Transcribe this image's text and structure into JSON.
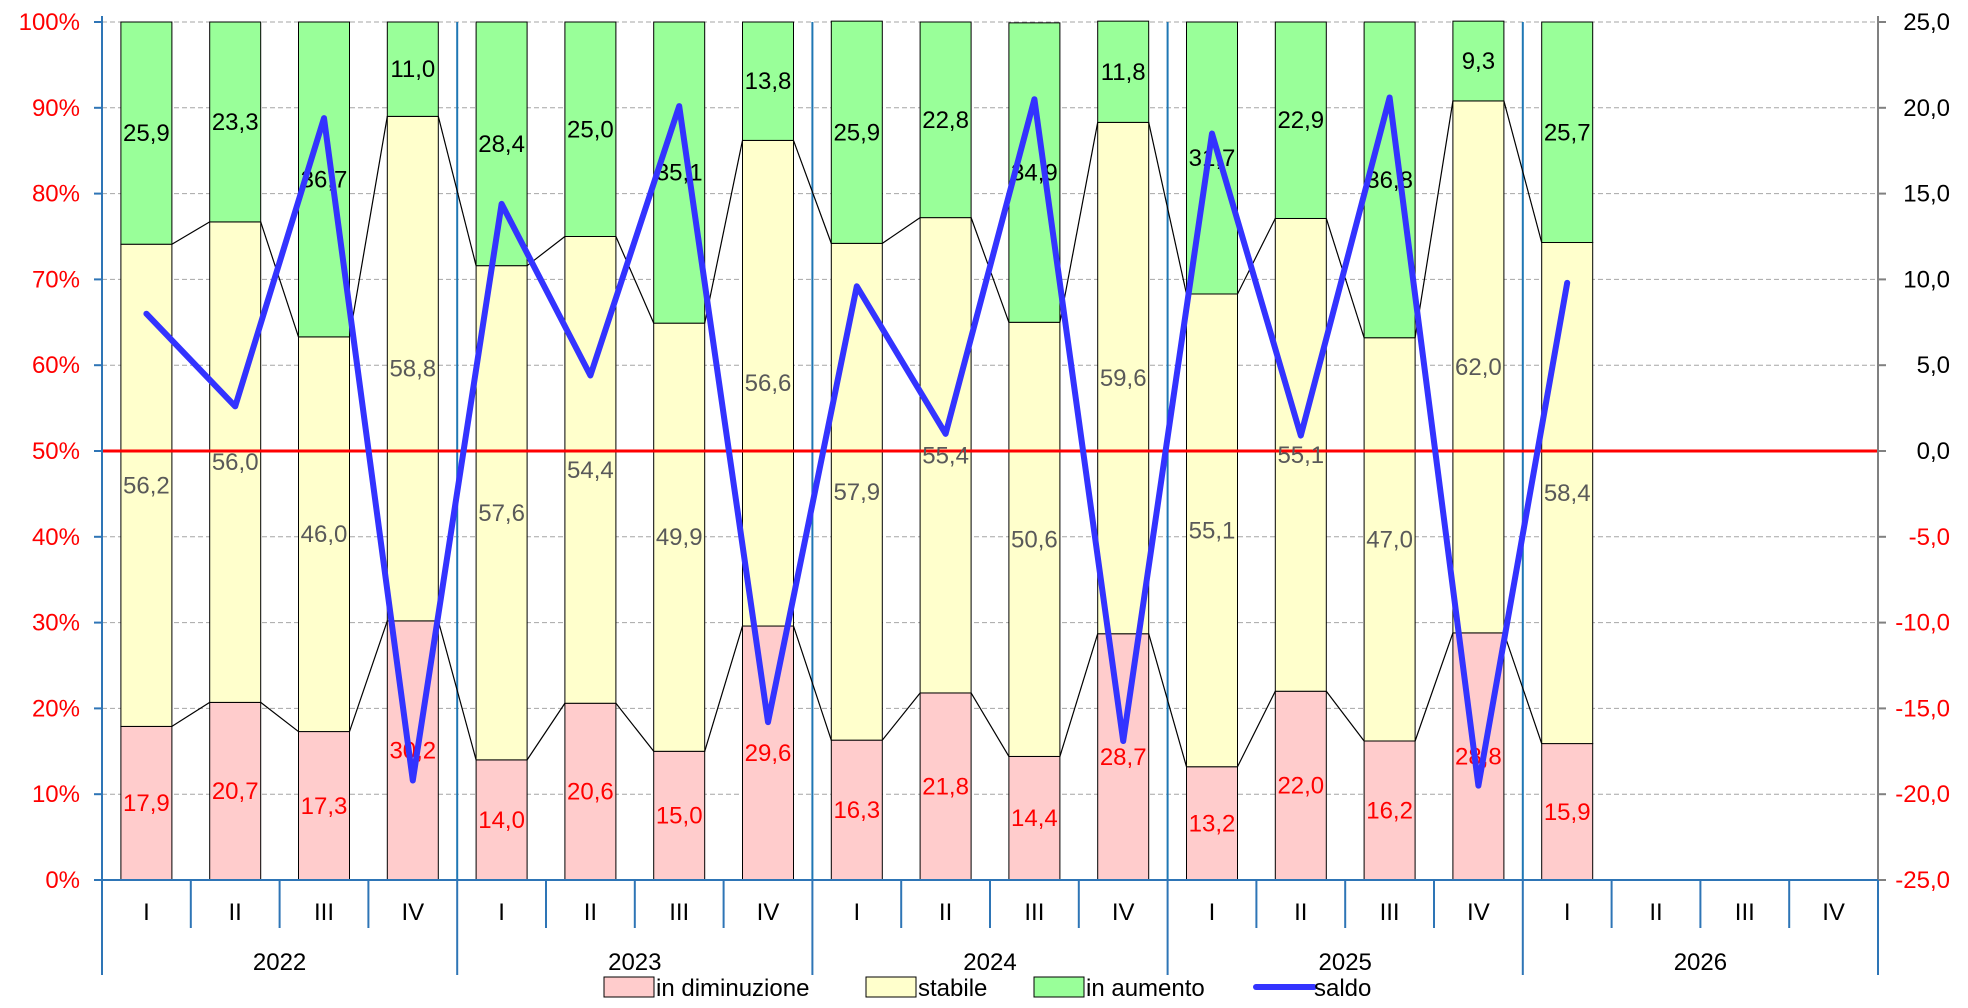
{
  "chart_data": {
    "type": "bar",
    "stacked": true,
    "years": [
      "2022",
      "2023",
      "2024",
      "2025",
      "2026"
    ],
    "quarters": [
      "I",
      "II",
      "III",
      "IV"
    ],
    "x": [
      {
        "year": "2022",
        "quarter": "I"
      },
      {
        "year": "2022",
        "quarter": "II"
      },
      {
        "year": "2022",
        "quarter": "III"
      },
      {
        "year": "2022",
        "quarter": "IV"
      },
      {
        "year": "2023",
        "quarter": "I"
      },
      {
        "year": "2023",
        "quarter": "II"
      },
      {
        "year": "2023",
        "quarter": "III"
      },
      {
        "year": "2023",
        "quarter": "IV"
      },
      {
        "year": "2024",
        "quarter": "I"
      },
      {
        "year": "2024",
        "quarter": "II"
      },
      {
        "year": "2024",
        "quarter": "III"
      },
      {
        "year": "2024",
        "quarter": "IV"
      },
      {
        "year": "2025",
        "quarter": "I"
      },
      {
        "year": "2025",
        "quarter": "II"
      },
      {
        "year": "2025",
        "quarter": "III"
      },
      {
        "year": "2025",
        "quarter": "IV"
      },
      {
        "year": "2026",
        "quarter": "I"
      },
      {
        "year": "2026",
        "quarter": "II"
      },
      {
        "year": "2026",
        "quarter": "III"
      },
      {
        "year": "2026",
        "quarter": "IV"
      }
    ],
    "series": [
      {
        "name": "in diminuzione",
        "color": "#ffcccc",
        "label_color": "#ff0000",
        "values": [
          17.9,
          20.7,
          17.3,
          30.2,
          14.0,
          20.6,
          15.0,
          29.6,
          16.3,
          21.8,
          14.4,
          28.7,
          13.2,
          22.0,
          16.2,
          28.8,
          15.9,
          null,
          null,
          null
        ]
      },
      {
        "name": "stabile",
        "color": "#ffffcc",
        "label_color": "#595959",
        "values": [
          56.2,
          56.0,
          46.0,
          58.8,
          57.6,
          54.4,
          49.9,
          56.6,
          57.9,
          55.4,
          50.6,
          59.6,
          55.1,
          55.1,
          47.0,
          62.0,
          58.4,
          null,
          null,
          null
        ]
      },
      {
        "name": "in aumento",
        "color": "#99ff99",
        "label_color": "#000000",
        "values": [
          25.9,
          23.3,
          36.7,
          11.0,
          28.4,
          25.0,
          35.1,
          13.8,
          25.9,
          22.8,
          34.9,
          11.8,
          31.7,
          22.9,
          36.8,
          9.3,
          25.7,
          null,
          null,
          null
        ]
      },
      {
        "name": "saldo",
        "type": "line",
        "axis": "right",
        "color": "#3333ff",
        "values": [
          8.0,
          2.6,
          19.4,
          -19.2,
          14.4,
          4.4,
          20.1,
          -15.8,
          9.6,
          1.0,
          20.5,
          -16.9,
          18.5,
          0.9,
          20.6,
          -19.5,
          9.8,
          null,
          null,
          null
        ]
      }
    ],
    "left_axis": {
      "ticks": [
        "0%",
        "10%",
        "20%",
        "30%",
        "40%",
        "50%",
        "60%",
        "70%",
        "80%",
        "90%",
        "100%"
      ],
      "range": [
        0,
        100
      ]
    },
    "right_axis": {
      "ticks": [
        "-25,0",
        "-20,0",
        "-15,0",
        "-10,0",
        "-5,0",
        "0,0",
        "5,0",
        "10,0",
        "15,0",
        "20,0",
        "25,0"
      ],
      "range": [
        -25,
        25
      ]
    },
    "reference_line": {
      "value": 50,
      "color": "#ff0000"
    },
    "grid": true,
    "legend_position": "bottom"
  }
}
